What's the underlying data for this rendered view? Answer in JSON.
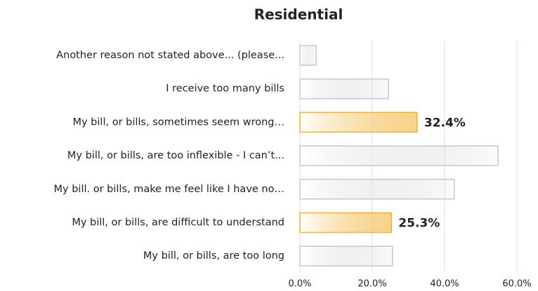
{
  "chart_data": {
    "type": "hbar",
    "title": "Residential",
    "categories": [
      "Another reason not stated above... (please...",
      "I receive too many bills",
      "My bill, or bills, sometimes seem wrong…",
      "My bill, or bills, are too inflexible - I can’t...",
      "My bill. or bills, make me feel like I have no…",
      "My bill, or bills, are difficult to understand",
      "My bill, or bills, are too long"
    ],
    "values": [
      4.5,
      24.5,
      32.4,
      54.8,
      42.7,
      25.3,
      25.6
    ],
    "value_labels": [
      null,
      null,
      "32.4%",
      null,
      null,
      "25.3%",
      null
    ],
    "colors": [
      "#c8c8c8",
      "#c8c8c8",
      "#f0b030",
      "#c8c8c8",
      "#c8c8c8",
      "#f0b030",
      "#c8c8c8"
    ],
    "xlim": [
      0,
      60
    ],
    "xticks": [
      {
        "value": 0,
        "label": "0.0%"
      },
      {
        "value": 20,
        "label": "20.0%"
      },
      {
        "value": 40,
        "label": "40.0%"
      },
      {
        "value": 60,
        "label": "60.0%"
      }
    ],
    "grid": true
  }
}
